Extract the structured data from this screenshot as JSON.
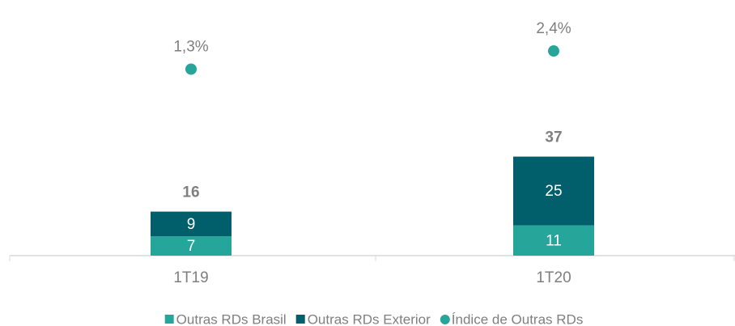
{
  "chart_data": {
    "type": "bar-dot",
    "categories": [
      "1T19",
      "1T20"
    ],
    "series": [
      {
        "name": "Outras RDs Brasil",
        "color": "#26a69a",
        "values": [
          7,
          11
        ]
      },
      {
        "name": "Outras RDs Exterior",
        "color": "#005f6b",
        "values": [
          9,
          25
        ]
      },
      {
        "name": "Índice de Outras RDs",
        "color": "#26a69a",
        "axis": "y2",
        "values": [
          1.3,
          2.4
        ],
        "value_labels": [
          "1,3%",
          "2,4%"
        ]
      }
    ],
    "totals": [
      16,
      37
    ],
    "ylim": [
      0,
      90
    ],
    "y2lim": [
      -10,
      5
    ]
  }
}
